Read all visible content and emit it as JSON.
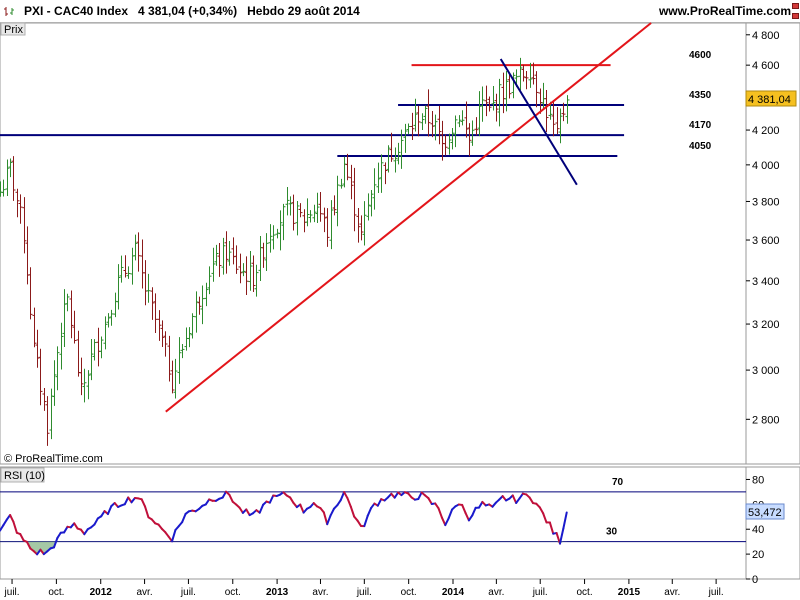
{
  "header": {
    "title": "PXI - CAC40 Index",
    "value": "4 381,04 (+0,34%)",
    "period": "Hebdo  29 août 2014",
    "site": "www.ProRealTime.com"
  },
  "colors": {
    "up_bar": "#2e8b2e",
    "down_bar": "#8b1a1a",
    "trend_red": "#e3151a",
    "trend_blue": "#00007a",
    "rsi_line_up": "#1a1acc",
    "rsi_line_down": "#c0103a",
    "price_box": "#f5c020",
    "rsi_box": "#c8dcff"
  },
  "chart_data": [
    {
      "type": "bar",
      "subtype": "ohlc",
      "y_axis_label": "Prix",
      "watermark": "© ProRealTime.com",
      "ylim": [
        2630,
        4880
      ],
      "ylog": true,
      "yticks": [
        2800,
        3000,
        3200,
        3400,
        3600,
        3800,
        4000,
        4200,
        4400,
        4600,
        4800
      ],
      "ytick_labels": [
        "2 800",
        "3 000",
        "3 200",
        "3 400",
        "3 600",
        "3 800",
        "4 000",
        "4 200",
        "4 400",
        "4 600",
        "4 800"
      ],
      "last_price_label": "4 381,04",
      "last_price": 4381.04,
      "x_axis": {
        "start": "2011-06-06",
        "end": "2015-09-01",
        "ticks": [
          {
            "date": "2011-07-01",
            "label": "juil.",
            "bold": false
          },
          {
            "date": "2011-10-01",
            "label": "oct.",
            "bold": false
          },
          {
            "date": "2012-01-01",
            "label": "2012",
            "bold": true
          },
          {
            "date": "2012-04-01",
            "label": "avr.",
            "bold": false
          },
          {
            "date": "2012-07-01",
            "label": "juil.",
            "bold": false
          },
          {
            "date": "2012-10-01",
            "label": "oct.",
            "bold": false
          },
          {
            "date": "2013-01-01",
            "label": "2013",
            "bold": true
          },
          {
            "date": "2013-04-01",
            "label": "avr.",
            "bold": false
          },
          {
            "date": "2013-07-01",
            "label": "juil.",
            "bold": false
          },
          {
            "date": "2013-10-01",
            "label": "oct.",
            "bold": false
          },
          {
            "date": "2014-01-01",
            "label": "2014",
            "bold": true
          },
          {
            "date": "2014-04-01",
            "label": "avr.",
            "bold": false
          },
          {
            "date": "2014-07-01",
            "label": "juil.",
            "bold": false
          },
          {
            "date": "2014-10-01",
            "label": "oct.",
            "bold": false
          },
          {
            "date": "2015-01-01",
            "label": "2015",
            "bold": true
          },
          {
            "date": "2015-04-01",
            "label": "avr.",
            "bold": false
          },
          {
            "date": "2015-07-01",
            "label": "juil.",
            "bold": false
          }
        ]
      },
      "anchors": [
        {
          "date": "2011-06-06",
          "close": 3850
        },
        {
          "date": "2011-06-27",
          "close": 3980
        },
        {
          "date": "2011-07-25",
          "close": 3630
        },
        {
          "date": "2011-08-15",
          "close": 3090
        },
        {
          "date": "2011-09-12",
          "close": 2780
        },
        {
          "date": "2011-10-10",
          "close": 3180
        },
        {
          "date": "2011-10-24",
          "close": 3310
        },
        {
          "date": "2011-11-21",
          "close": 2900
        },
        {
          "date": "2011-12-12",
          "close": 3050
        },
        {
          "date": "2012-01-09",
          "close": 3200
        },
        {
          "date": "2012-02-06",
          "close": 3390
        },
        {
          "date": "2012-03-12",
          "close": 3540
        },
        {
          "date": "2012-04-02",
          "close": 3360
        },
        {
          "date": "2012-05-07",
          "close": 3120
        },
        {
          "date": "2012-05-28",
          "close": 2960
        },
        {
          "date": "2012-07-02",
          "close": 3190
        },
        {
          "date": "2012-08-13",
          "close": 3450
        },
        {
          "date": "2012-09-17",
          "close": 3540
        },
        {
          "date": "2012-10-15",
          "close": 3450
        },
        {
          "date": "2012-11-12",
          "close": 3420
        },
        {
          "date": "2012-12-17",
          "close": 3650
        },
        {
          "date": "2013-01-21",
          "close": 3750
        },
        {
          "date": "2013-02-25",
          "close": 3710
        },
        {
          "date": "2013-03-25",
          "close": 3780
        },
        {
          "date": "2013-04-15",
          "close": 3640
        },
        {
          "date": "2013-05-20",
          "close": 4010
        },
        {
          "date": "2013-06-24",
          "close": 3620
        },
        {
          "date": "2013-07-22",
          "close": 3920
        },
        {
          "date": "2013-08-19",
          "close": 4050
        },
        {
          "date": "2013-09-16",
          "close": 4140
        },
        {
          "date": "2013-10-21",
          "close": 4290
        },
        {
          "date": "2013-11-18",
          "close": 4260
        },
        {
          "date": "2013-12-09",
          "close": 4110
        },
        {
          "date": "2014-01-13",
          "close": 4300
        },
        {
          "date": "2014-02-03",
          "close": 4140
        },
        {
          "date": "2014-03-03",
          "close": 4360
        },
        {
          "date": "2014-03-17",
          "close": 4310
        },
        {
          "date": "2014-04-07",
          "close": 4420
        },
        {
          "date": "2014-05-12",
          "close": 4510
        },
        {
          "date": "2014-06-09",
          "close": 4580
        },
        {
          "date": "2014-07-07",
          "close": 4370
        },
        {
          "date": "2014-08-04",
          "close": 4150
        },
        {
          "date": "2014-08-11",
          "close": 4250
        },
        {
          "date": "2014-08-25",
          "close": 4381.04
        }
      ],
      "levels": [
        {
          "value": 4600,
          "label": "4600",
          "color": "#e3151a",
          "from": "2013-10-07",
          "to": "2014-11-24"
        },
        {
          "value": 4350,
          "label": "4350",
          "color": "#00007a",
          "from": "2013-09-09",
          "to": "2014-12-22"
        },
        {
          "value": 4170,
          "label": "4170",
          "color": "#00007a",
          "from": "2011-06-06",
          "to": "2014-12-22"
        },
        {
          "value": 4050,
          "label": "4050",
          "color": "#00007a",
          "from": "2013-05-06",
          "to": "2014-12-08"
        }
      ],
      "trendlines": [
        {
          "name": "uptrend",
          "color": "#e3151a",
          "from": {
            "date": "2012-05-15",
            "value": 2830
          },
          "to": {
            "date": "2015-02-16",
            "value": 4880
          }
        },
        {
          "name": "downtrend",
          "color": "#00007a",
          "from": {
            "date": "2014-04-10",
            "value": 4640
          },
          "to": {
            "date": "2014-09-15",
            "value": 3890
          }
        }
      ]
    },
    {
      "type": "line",
      "title": "RSI (10)",
      "ylim": [
        0,
        90
      ],
      "yticks": [
        0,
        20,
        40,
        60,
        80
      ],
      "ytick_labels": [
        "0",
        "20",
        "40",
        "60",
        "80"
      ],
      "last_value_label": "53,472",
      "last_value": 53.472,
      "levels": [
        {
          "value": 70,
          "label": "70"
        },
        {
          "value": 30,
          "label": "30"
        }
      ],
      "anchors": [
        {
          "date": "2011-06-06",
          "value": 38
        },
        {
          "date": "2011-06-27",
          "value": 50
        },
        {
          "date": "2011-07-18",
          "value": 34
        },
        {
          "date": "2011-08-15",
          "value": 22
        },
        {
          "date": "2011-09-12",
          "value": 21
        },
        {
          "date": "2011-10-17",
          "value": 38
        },
        {
          "date": "2011-11-07",
          "value": 44
        },
        {
          "date": "2011-11-28",
          "value": 38
        },
        {
          "date": "2011-12-26",
          "value": 46
        },
        {
          "date": "2012-01-16",
          "value": 55
        },
        {
          "date": "2012-02-20",
          "value": 63
        },
        {
          "date": "2012-03-19",
          "value": 66
        },
        {
          "date": "2012-04-09",
          "value": 52
        },
        {
          "date": "2012-05-07",
          "value": 40
        },
        {
          "date": "2012-05-28",
          "value": 33
        },
        {
          "date": "2012-06-25",
          "value": 52
        },
        {
          "date": "2012-07-16",
          "value": 56
        },
        {
          "date": "2012-08-20",
          "value": 65
        },
        {
          "date": "2012-09-24",
          "value": 68
        },
        {
          "date": "2012-10-15",
          "value": 56
        },
        {
          "date": "2012-11-12",
          "value": 50
        },
        {
          "date": "2012-12-17",
          "value": 64
        },
        {
          "date": "2013-01-21",
          "value": 68
        },
        {
          "date": "2013-02-25",
          "value": 55
        },
        {
          "date": "2013-03-18",
          "value": 62
        },
        {
          "date": "2013-04-15",
          "value": 47
        },
        {
          "date": "2013-05-20",
          "value": 70
        },
        {
          "date": "2013-06-24",
          "value": 40
        },
        {
          "date": "2013-07-22",
          "value": 60
        },
        {
          "date": "2013-08-19",
          "value": 67
        },
        {
          "date": "2013-09-09",
          "value": 68
        },
        {
          "date": "2013-10-07",
          "value": 66
        },
        {
          "date": "2013-10-28",
          "value": 67
        },
        {
          "date": "2013-12-02",
          "value": 57
        },
        {
          "date": "2013-12-16",
          "value": 45
        },
        {
          "date": "2014-01-13",
          "value": 62
        },
        {
          "date": "2014-02-03",
          "value": 50
        },
        {
          "date": "2014-03-03",
          "value": 60
        },
        {
          "date": "2014-03-24",
          "value": 56
        },
        {
          "date": "2014-04-14",
          "value": 65
        },
        {
          "date": "2014-05-12",
          "value": 64
        },
        {
          "date": "2014-06-09",
          "value": 68
        },
        {
          "date": "2014-07-07",
          "value": 52
        },
        {
          "date": "2014-07-28",
          "value": 38
        },
        {
          "date": "2014-08-11",
          "value": 31
        },
        {
          "date": "2014-08-25",
          "value": 53.472
        }
      ]
    }
  ]
}
